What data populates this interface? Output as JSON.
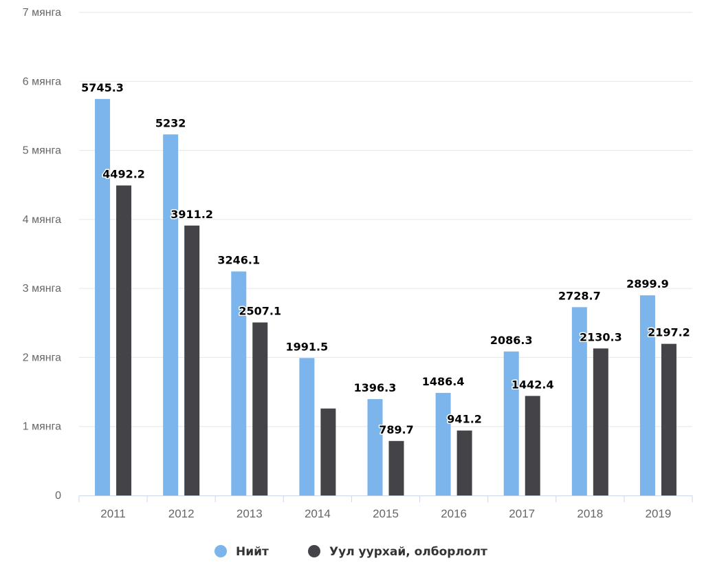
{
  "chart_data": {
    "type": "bar",
    "title": "",
    "xlabel": "",
    "ylabel": "",
    "categories": [
      "2011",
      "2012",
      "2013",
      "2014",
      "2015",
      "2016",
      "2017",
      "2018",
      "2019"
    ],
    "series": [
      {
        "name": "Нийт",
        "color": "#7cb5ec",
        "values": [
          5745.3,
          5232,
          3246.1,
          1991.5,
          1396.3,
          1486.4,
          2086.3,
          2728.7,
          2899.9
        ],
        "data_labels": [
          "5745.3",
          "5232",
          "3246.1",
          "1991.5",
          "1396.3",
          "1486.4",
          "2086.3",
          "2728.7",
          "2899.9"
        ]
      },
      {
        "name": "Уул уурхай, олборлолт",
        "color": "#434348",
        "values": [
          4492.2,
          3911.2,
          2507.1,
          1260,
          789.7,
          941.2,
          1442.4,
          2130.3,
          2197.2
        ],
        "data_labels": [
          "4492.2",
          "3911.2",
          "2507.1",
          "",
          "789.7",
          "941.2",
          "1442.4",
          "2130.3",
          "2197.2"
        ]
      }
    ],
    "ylim": [
      0,
      7000
    ],
    "yticks": [
      0,
      1000,
      2000,
      3000,
      4000,
      5000,
      6000,
      7000
    ],
    "ytick_labels": [
      "0",
      "1 мянга",
      "2 мянга",
      "3 мянга",
      "4 мянга",
      "5 мянга",
      "6 мянга",
      "7 мянга"
    ],
    "grid": true,
    "legend_position": "bottom-center"
  }
}
